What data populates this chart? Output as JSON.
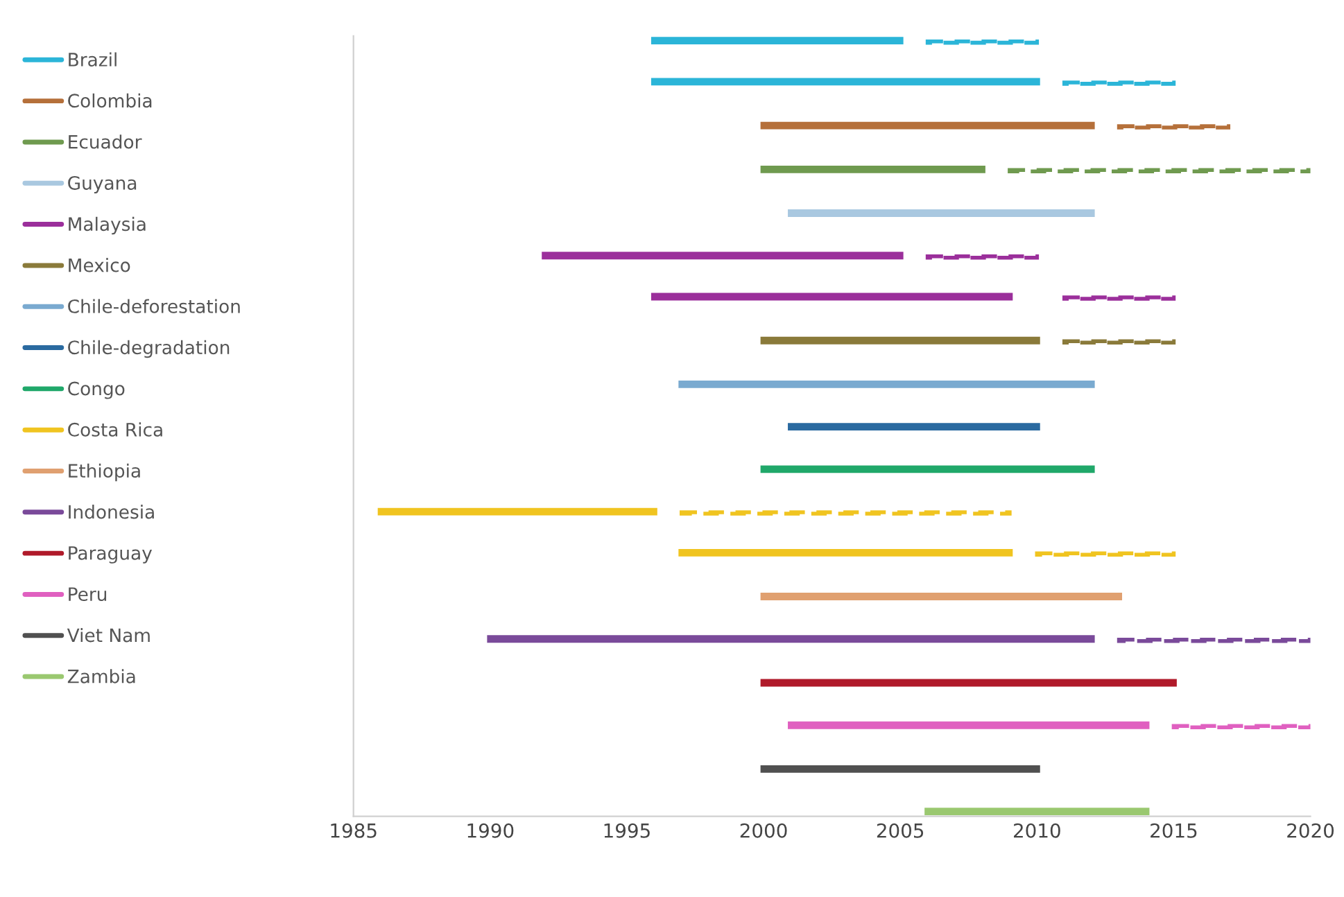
{
  "chart_data": {
    "type": "bar",
    "orientation": "horizontal",
    "legend": "left",
    "grid": false,
    "categories": [
      null,
      null,
      null,
      null,
      null,
      null,
      null,
      null,
      null,
      null,
      null,
      null,
      null,
      null,
      null,
      null,
      null,
      null,
      null
    ],
    "xlim": [
      1985,
      2020
    ],
    "xticks": [
      1985,
      1990,
      1995,
      2000,
      2005,
      2010,
      2015,
      2020
    ],
    "series": [
      {
        "name": "Brazil",
        "color": "#2bb5d8",
        "values": [
          9,
          14,
          null,
          null,
          null,
          null,
          null,
          null,
          null,
          null,
          null,
          null,
          null,
          null,
          null,
          null,
          null,
          null,
          null
        ],
        "base": [
          1996,
          1996,
          null,
          null,
          null,
          null,
          null,
          null,
          null,
          null,
          null,
          null,
          null,
          null,
          null,
          null,
          null,
          null,
          null
        ]
      },
      {
        "color": "#2bb5d8",
        "line_style": "dashed",
        "values": [
          4,
          4,
          null,
          null,
          null,
          null,
          null,
          null,
          null,
          null,
          null,
          null,
          null,
          null,
          null,
          null,
          null,
          null,
          null
        ],
        "base": [
          2006,
          2011,
          null,
          null,
          null,
          null,
          null,
          null,
          null,
          null,
          null,
          null,
          null,
          null,
          null,
          null,
          null,
          null,
          null
        ]
      },
      {
        "name": "Colombia",
        "color": "#b5703a",
        "values": [
          null,
          null,
          12,
          null,
          null,
          null,
          null,
          null,
          null,
          null,
          null,
          null,
          null,
          null,
          null,
          null,
          null,
          null,
          null
        ],
        "base": [
          null,
          null,
          2000,
          null,
          null,
          null,
          null,
          null,
          null,
          null,
          null,
          null,
          null,
          null,
          null,
          null,
          null,
          null,
          null
        ]
      },
      {
        "color": "#b5703a",
        "line_style": "dashed",
        "values": [
          null,
          null,
          4,
          null,
          null,
          null,
          null,
          null,
          null,
          null,
          null,
          null,
          null,
          null,
          null,
          null,
          null,
          null,
          null
        ],
        "base": [
          null,
          null,
          2013,
          null,
          null,
          null,
          null,
          null,
          null,
          null,
          null,
          null,
          null,
          null,
          null,
          null,
          null,
          null,
          null
        ]
      },
      {
        "name": "Ecuador",
        "color": "#6f9a4f",
        "values": [
          null,
          null,
          null,
          8,
          null,
          null,
          null,
          null,
          null,
          null,
          null,
          null,
          null,
          null,
          null,
          null,
          null,
          null,
          null
        ],
        "base": [
          null,
          null,
          null,
          2000,
          null,
          null,
          null,
          null,
          null,
          null,
          null,
          null,
          null,
          null,
          null,
          null,
          null,
          null,
          null
        ]
      },
      {
        "color": "#6f9a4f",
        "line_style": "dashed",
        "values": [
          null,
          null,
          null,
          11,
          null,
          null,
          null,
          null,
          null,
          null,
          null,
          null,
          null,
          null,
          null,
          null,
          null,
          null,
          null
        ],
        "base": [
          null,
          null,
          null,
          2009,
          null,
          null,
          null,
          null,
          null,
          null,
          null,
          null,
          null,
          null,
          null,
          null,
          null,
          null,
          null
        ]
      },
      {
        "name": "Guyana",
        "color": "#a9c8e0",
        "values": [
          null,
          null,
          null,
          null,
          11,
          null,
          null,
          null,
          null,
          null,
          null,
          null,
          null,
          null,
          null,
          null,
          null,
          null,
          null
        ],
        "base": [
          null,
          null,
          null,
          null,
          2001,
          null,
          null,
          null,
          null,
          null,
          null,
          null,
          null,
          null,
          null,
          null,
          null,
          null,
          null
        ]
      },
      {
        "name": "Malaysia",
        "color": "#9b2f9b",
        "values": [
          null,
          null,
          null,
          null,
          null,
          13,
          13,
          null,
          null,
          null,
          null,
          null,
          null,
          null,
          null,
          null,
          null,
          null,
          null
        ],
        "base": [
          null,
          null,
          null,
          null,
          null,
          1992,
          1996,
          null,
          null,
          null,
          null,
          null,
          null,
          null,
          null,
          null,
          null,
          null,
          null
        ]
      },
      {
        "color": "#9b2f9b",
        "line_style": "dashed",
        "values": [
          null,
          null,
          null,
          null,
          null,
          4,
          4,
          null,
          null,
          null,
          null,
          null,
          null,
          null,
          null,
          null,
          null,
          null,
          null
        ],
        "base": [
          null,
          null,
          null,
          null,
          null,
          2006,
          2011,
          null,
          null,
          null,
          null,
          null,
          null,
          null,
          null,
          null,
          null,
          null,
          null
        ]
      },
      {
        "name": "Mexico",
        "color": "#8a7a3a",
        "values": [
          null,
          null,
          null,
          null,
          null,
          null,
          null,
          10,
          null,
          null,
          null,
          null,
          null,
          null,
          null,
          null,
          null,
          null,
          null
        ],
        "base": [
          null,
          null,
          null,
          null,
          null,
          null,
          null,
          2000,
          null,
          null,
          null,
          null,
          null,
          null,
          null,
          null,
          null,
          null,
          null
        ]
      },
      {
        "color": "#8a7a3a",
        "line_style": "dashed",
        "values": [
          null,
          null,
          null,
          null,
          null,
          null,
          null,
          4,
          null,
          null,
          null,
          null,
          null,
          null,
          null,
          null,
          null,
          null,
          null
        ],
        "base": [
          null,
          null,
          null,
          null,
          null,
          null,
          null,
          2011,
          null,
          null,
          null,
          null,
          null,
          null,
          null,
          null,
          null,
          null,
          null
        ]
      },
      {
        "name": "Chile-deforestation",
        "color": "#7aaad0",
        "values": [
          null,
          null,
          null,
          null,
          null,
          null,
          null,
          null,
          15,
          null,
          null,
          null,
          null,
          null,
          null,
          null,
          null,
          null,
          null
        ],
        "base": [
          null,
          null,
          null,
          null,
          null,
          null,
          null,
          null,
          1997,
          null,
          null,
          null,
          null,
          null,
          null,
          null,
          null,
          null,
          null
        ]
      },
      {
        "name": "Chile-degradation",
        "color": "#2a6aa0",
        "values": [
          null,
          null,
          null,
          null,
          null,
          null,
          null,
          null,
          null,
          9,
          null,
          null,
          null,
          null,
          null,
          null,
          null,
          null,
          null
        ],
        "base": [
          null,
          null,
          null,
          null,
          null,
          null,
          null,
          null,
          null,
          2001,
          null,
          null,
          null,
          null,
          null,
          null,
          null,
          null,
          null
        ]
      },
      {
        "name": "Congo",
        "color": "#20a86a",
        "values": [
          null,
          null,
          null,
          null,
          null,
          null,
          null,
          null,
          null,
          null,
          12,
          null,
          null,
          null,
          null,
          null,
          null,
          null,
          null
        ],
        "base": [
          null,
          null,
          null,
          null,
          null,
          null,
          null,
          null,
          null,
          null,
          2000,
          null,
          null,
          null,
          null,
          null,
          null,
          null,
          null
        ]
      },
      {
        "name": "Costa Rica",
        "color": "#f0c420",
        "values": [
          null,
          null,
          null,
          null,
          null,
          null,
          null,
          null,
          null,
          null,
          null,
          10,
          12,
          null,
          null,
          null,
          null,
          null,
          null
        ],
        "base": [
          null,
          null,
          null,
          null,
          null,
          null,
          null,
          null,
          null,
          null,
          null,
          1986,
          1997,
          null,
          null,
          null,
          null,
          null,
          null
        ]
      },
      {
        "color": "#f0c420",
        "line_style": "dashed",
        "values": [
          null,
          null,
          null,
          null,
          null,
          null,
          null,
          null,
          null,
          null,
          null,
          12,
          5,
          null,
          null,
          null,
          null,
          null,
          null
        ],
        "base": [
          null,
          null,
          null,
          null,
          null,
          null,
          null,
          null,
          null,
          null,
          null,
          1997,
          2010,
          null,
          null,
          null,
          null,
          null,
          null
        ]
      },
      {
        "name": "Ethiopia",
        "color": "#e0a070",
        "values": [
          null,
          null,
          null,
          null,
          null,
          null,
          null,
          null,
          null,
          null,
          null,
          null,
          null,
          13,
          null,
          null,
          null,
          null,
          null
        ],
        "base": [
          null,
          null,
          null,
          null,
          null,
          null,
          null,
          null,
          null,
          null,
          null,
          null,
          null,
          2000,
          null,
          null,
          null,
          null,
          null
        ]
      },
      {
        "name": "Indonesia",
        "color": "#7a4a9a",
        "values": [
          null,
          null,
          null,
          null,
          null,
          null,
          null,
          null,
          null,
          null,
          null,
          null,
          null,
          null,
          22,
          null,
          null,
          null,
          null
        ],
        "base": [
          null,
          null,
          null,
          null,
          null,
          null,
          null,
          null,
          null,
          null,
          null,
          null,
          null,
          null,
          1990,
          null,
          null,
          null,
          null
        ]
      },
      {
        "color": "#7a4a9a",
        "line_style": "dashed",
        "values": [
          null,
          null,
          null,
          null,
          null,
          null,
          null,
          null,
          null,
          null,
          null,
          null,
          null,
          null,
          7,
          null,
          null,
          null,
          null
        ],
        "base": [
          null,
          null,
          null,
          null,
          null,
          null,
          null,
          null,
          null,
          null,
          null,
          null,
          null,
          null,
          2013,
          null,
          null,
          null,
          null
        ]
      },
      {
        "name": "Paraguay",
        "color": "#b01a2a",
        "values": [
          null,
          null,
          null,
          null,
          null,
          null,
          null,
          null,
          null,
          null,
          null,
          null,
          null,
          null,
          null,
          15,
          null,
          null,
          null
        ],
        "base": [
          null,
          null,
          null,
          null,
          null,
          null,
          null,
          null,
          null,
          null,
          null,
          null,
          null,
          null,
          null,
          2000,
          null,
          null,
          null
        ]
      },
      {
        "name": "Peru",
        "color": "#e060c0",
        "values": [
          null,
          null,
          null,
          null,
          null,
          null,
          null,
          null,
          null,
          null,
          null,
          null,
          null,
          null,
          null,
          null,
          13,
          null,
          null
        ],
        "base": [
          null,
          null,
          null,
          null,
          null,
          null,
          null,
          null,
          null,
          null,
          null,
          null,
          null,
          null,
          null,
          null,
          2001,
          null,
          null
        ]
      },
      {
        "color": "#e060c0",
        "line_style": "dashed",
        "values": [
          null,
          null,
          null,
          null,
          null,
          null,
          null,
          null,
          null,
          null,
          null,
          null,
          null,
          null,
          null,
          null,
          5,
          null,
          null
        ],
        "base": [
          null,
          null,
          null,
          null,
          null,
          null,
          null,
          null,
          null,
          null,
          null,
          null,
          null,
          null,
          null,
          null,
          2015,
          null,
          null
        ]
      },
      {
        "name": "Viet Nam",
        "color": "#505050",
        "values": [
          null,
          null,
          null,
          null,
          null,
          null,
          null,
          null,
          null,
          null,
          null,
          null,
          null,
          null,
          null,
          null,
          null,
          10,
          null
        ],
        "base": [
          null,
          null,
          null,
          null,
          null,
          null,
          null,
          null,
          null,
          null,
          null,
          null,
          null,
          null,
          null,
          null,
          null,
          2000,
          null
        ]
      },
      {
        "name": "Zambia",
        "color": "#9ac870",
        "values": [
          null,
          null,
          null,
          null,
          null,
          null,
          null,
          null,
          null,
          null,
          null,
          null,
          null,
          null,
          null,
          null,
          null,
          null,
          8
        ],
        "base": [
          null,
          null,
          null,
          null,
          null,
          null,
          null,
          null,
          null,
          null,
          null,
          null,
          null,
          null,
          null,
          null,
          null,
          null,
          2006
        ]
      }
    ]
  }
}
